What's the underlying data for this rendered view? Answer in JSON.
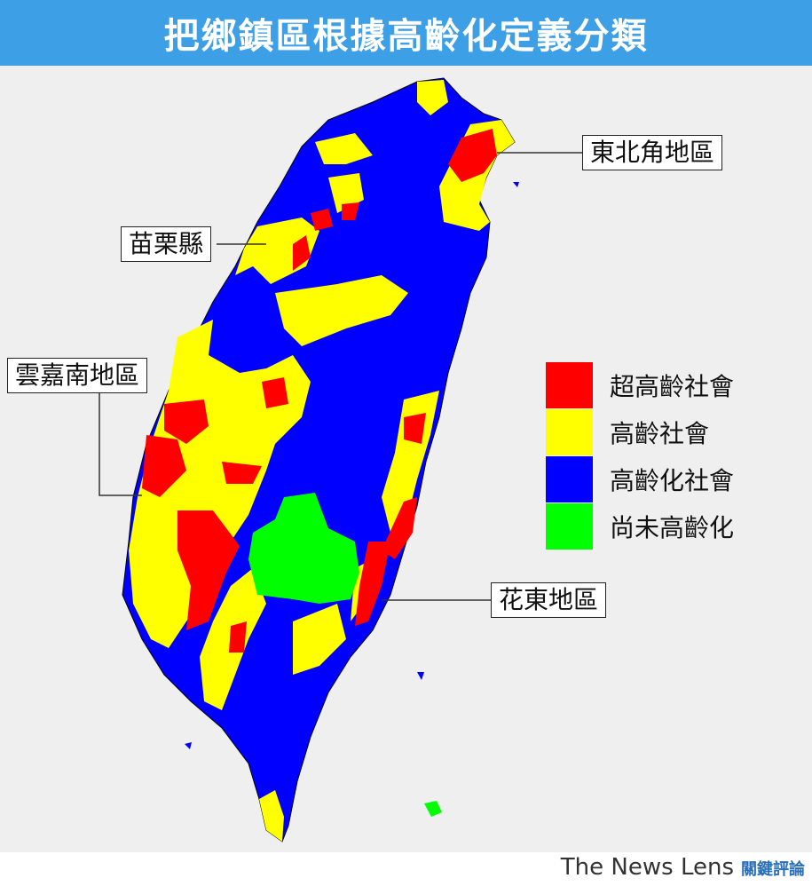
{
  "title": "把鄉鎮區根據高齡化定義分類",
  "callouts": {
    "northeast": "東北角地區",
    "miaoli": "苗栗縣",
    "yunchiayinan": "雲嘉南地區",
    "hualien_taitung": "花東地區"
  },
  "legend": [
    {
      "label": "超高齡社會",
      "color": "#ff0000"
    },
    {
      "label": "高齡社會",
      "color": "#ffff00"
    },
    {
      "label": "高齡化社會",
      "color": "#0000ff"
    },
    {
      "label": "尚未高齡化",
      "color": "#00ff00"
    }
  ],
  "logo": {
    "text": "The News Lens",
    "cn": "關鍵評論"
  }
}
